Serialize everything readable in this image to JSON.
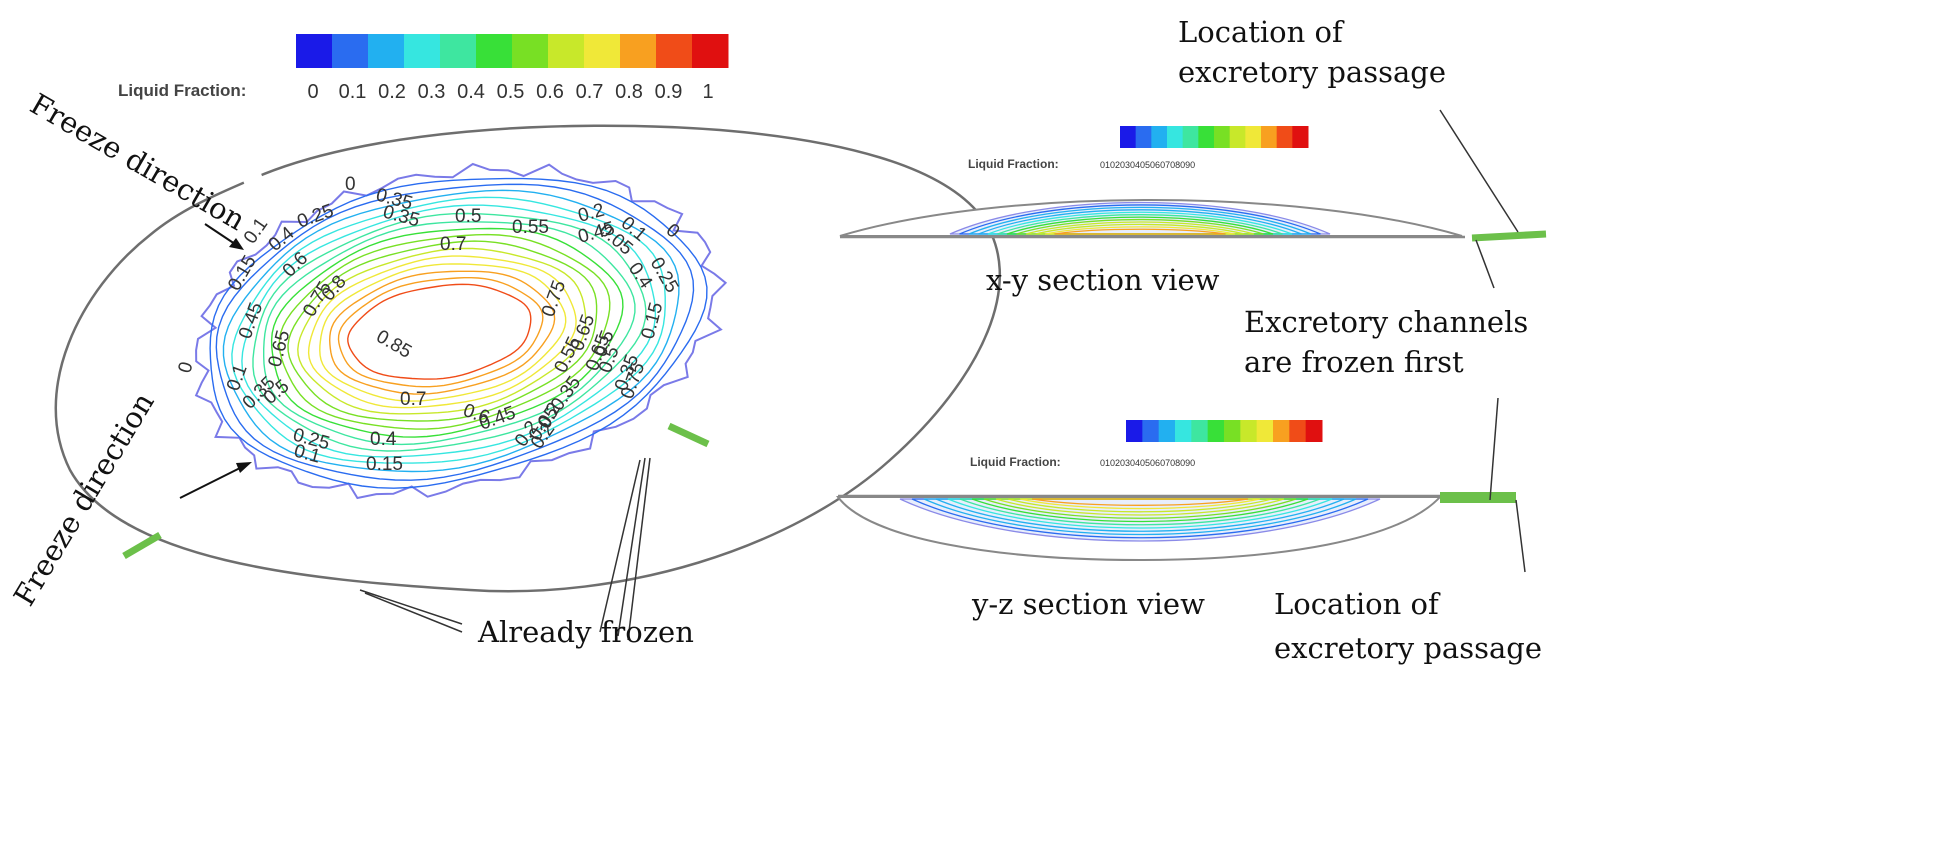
{
  "colorbar": {
    "title": "Liquid Fraction:",
    "ticks": [
      "0",
      "0.1",
      "0.2",
      "0.3",
      "0.4",
      "0.5",
      "0.6",
      "0.7",
      "0.8",
      "0.9",
      "1"
    ],
    "colors": [
      "#1a1ae8",
      "#2a6cf0",
      "#22b0f0",
      "#36e6e0",
      "#3ee6a0",
      "#38e038",
      "#78e024",
      "#c8e82a",
      "#f0e838",
      "#f8a020",
      "#f04c18",
      "#e01010"
    ]
  },
  "small_colorbars": {
    "xy": {
      "title": "Liquid Fraction:",
      "ticks": "0102030405060708090"
    },
    "yz": {
      "title": "Liquid Fraction:",
      "ticks": "0102030405060708090"
    }
  },
  "annotations": {
    "freeze_direction_top": "Freeze direction",
    "freeze_direction_bottom": "Freeze direction",
    "already_frozen": "Already frozen",
    "location_top_line1": "Location of",
    "location_top_line2": "excretory passage",
    "xy_section": "x-y section view",
    "channels_line1": "Excretory channels",
    "channels_line2": "are frozen first",
    "yz_section": "y-z section view",
    "location_bottom_line1": "Location of",
    "location_bottom_line2": "excretory passage"
  },
  "contour_labels": {
    "l01": "0",
    "l02": "0.35",
    "l03": "0.35",
    "l04": "0.25",
    "l05": "0.1",
    "l06": "0.15",
    "l07": "0.4",
    "l08": "0.6",
    "l09": "0.5",
    "l10": "0.55",
    "l11": "0.7",
    "l12": "0.2",
    "l13": "0.45",
    "l14": "0.1",
    "l15": "0.05",
    "l16": "0",
    "l17": "0.25",
    "l18": "0.4",
    "l19": "0.45",
    "l20": "0.75",
    "l21": "0.8",
    "l22": "0.85",
    "l23": "0.75",
    "l24": "0.65",
    "l25": "0.15",
    "l26": "0.65",
    "l27": "0.55",
    "l28": "0.5",
    "l29": "0.65",
    "l30": "0.5",
    "l31": "0.35",
    "l32": "0.75",
    "l33": "0.1",
    "l34": "0",
    "l35": "0.35",
    "l36": "0.5",
    "l37": "0.7",
    "l38": "0.6",
    "l39": "0.45",
    "l40": "0.35",
    "l41": "0.2",
    "l42": "0.05",
    "l43": "0.25",
    "l44": "0.4",
    "l45": "0.1",
    "l46": "0.15",
    "l47": "0.2",
    "l48": "0.2"
  }
}
